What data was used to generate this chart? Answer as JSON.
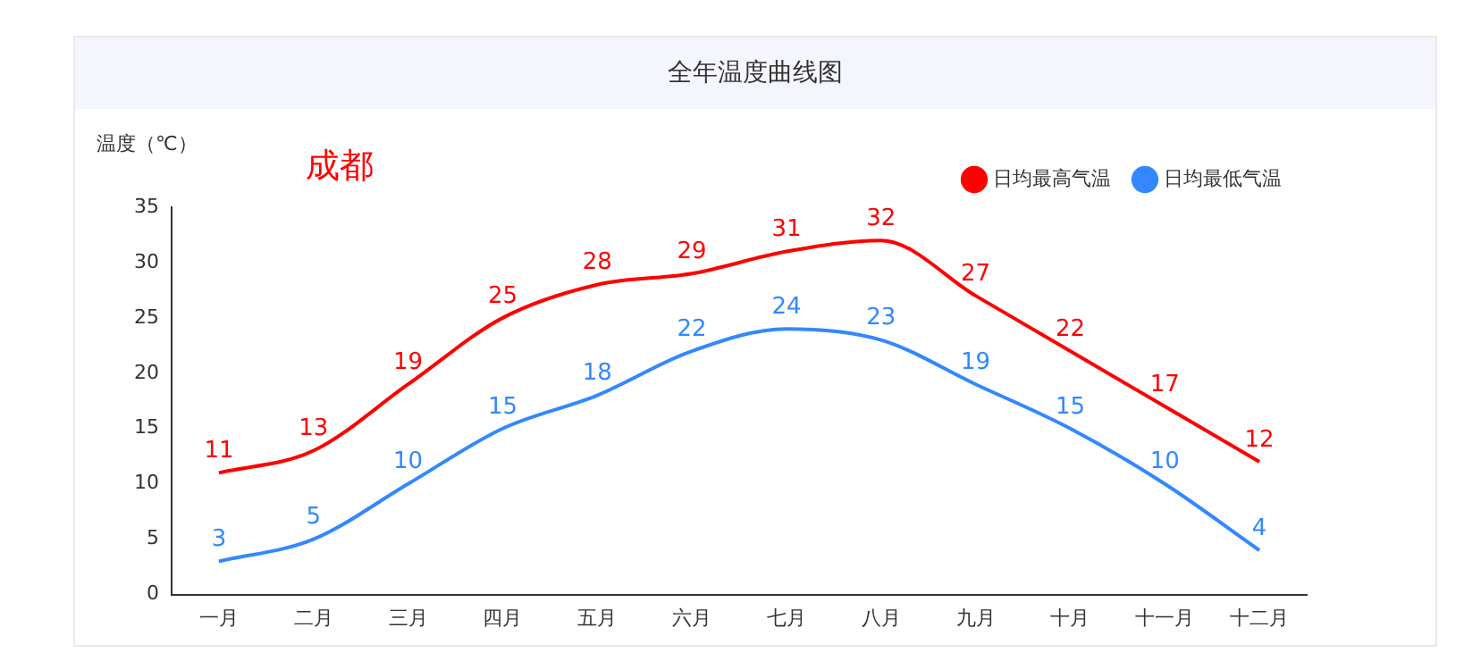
{
  "chart_data": {
    "type": "line",
    "title": "全年温度曲线图",
    "ylabel": "温度（℃）",
    "annotations": [
      "成都"
    ],
    "categories": [
      "一月",
      "二月",
      "三月",
      "四月",
      "五月",
      "六月",
      "七月",
      "八月",
      "九月",
      "十月",
      "十一月",
      "十二月"
    ],
    "series": [
      {
        "name": "日均最高气温",
        "color": "#ff0000",
        "values": [
          11,
          13,
          19,
          25,
          28,
          29,
          31,
          32,
          27,
          22,
          17,
          12
        ]
      },
      {
        "name": "日均最低气温",
        "color": "#3388ff",
        "values": [
          3,
          5,
          10,
          15,
          18,
          22,
          24,
          23,
          19,
          15,
          10,
          4
        ]
      }
    ],
    "ylim": [
      0,
      35
    ],
    "yticks": [
      0,
      5,
      10,
      15,
      20,
      25,
      30,
      35
    ],
    "grid": false,
    "legend": "top right",
    "data_labels": true,
    "marker": "none"
  }
}
